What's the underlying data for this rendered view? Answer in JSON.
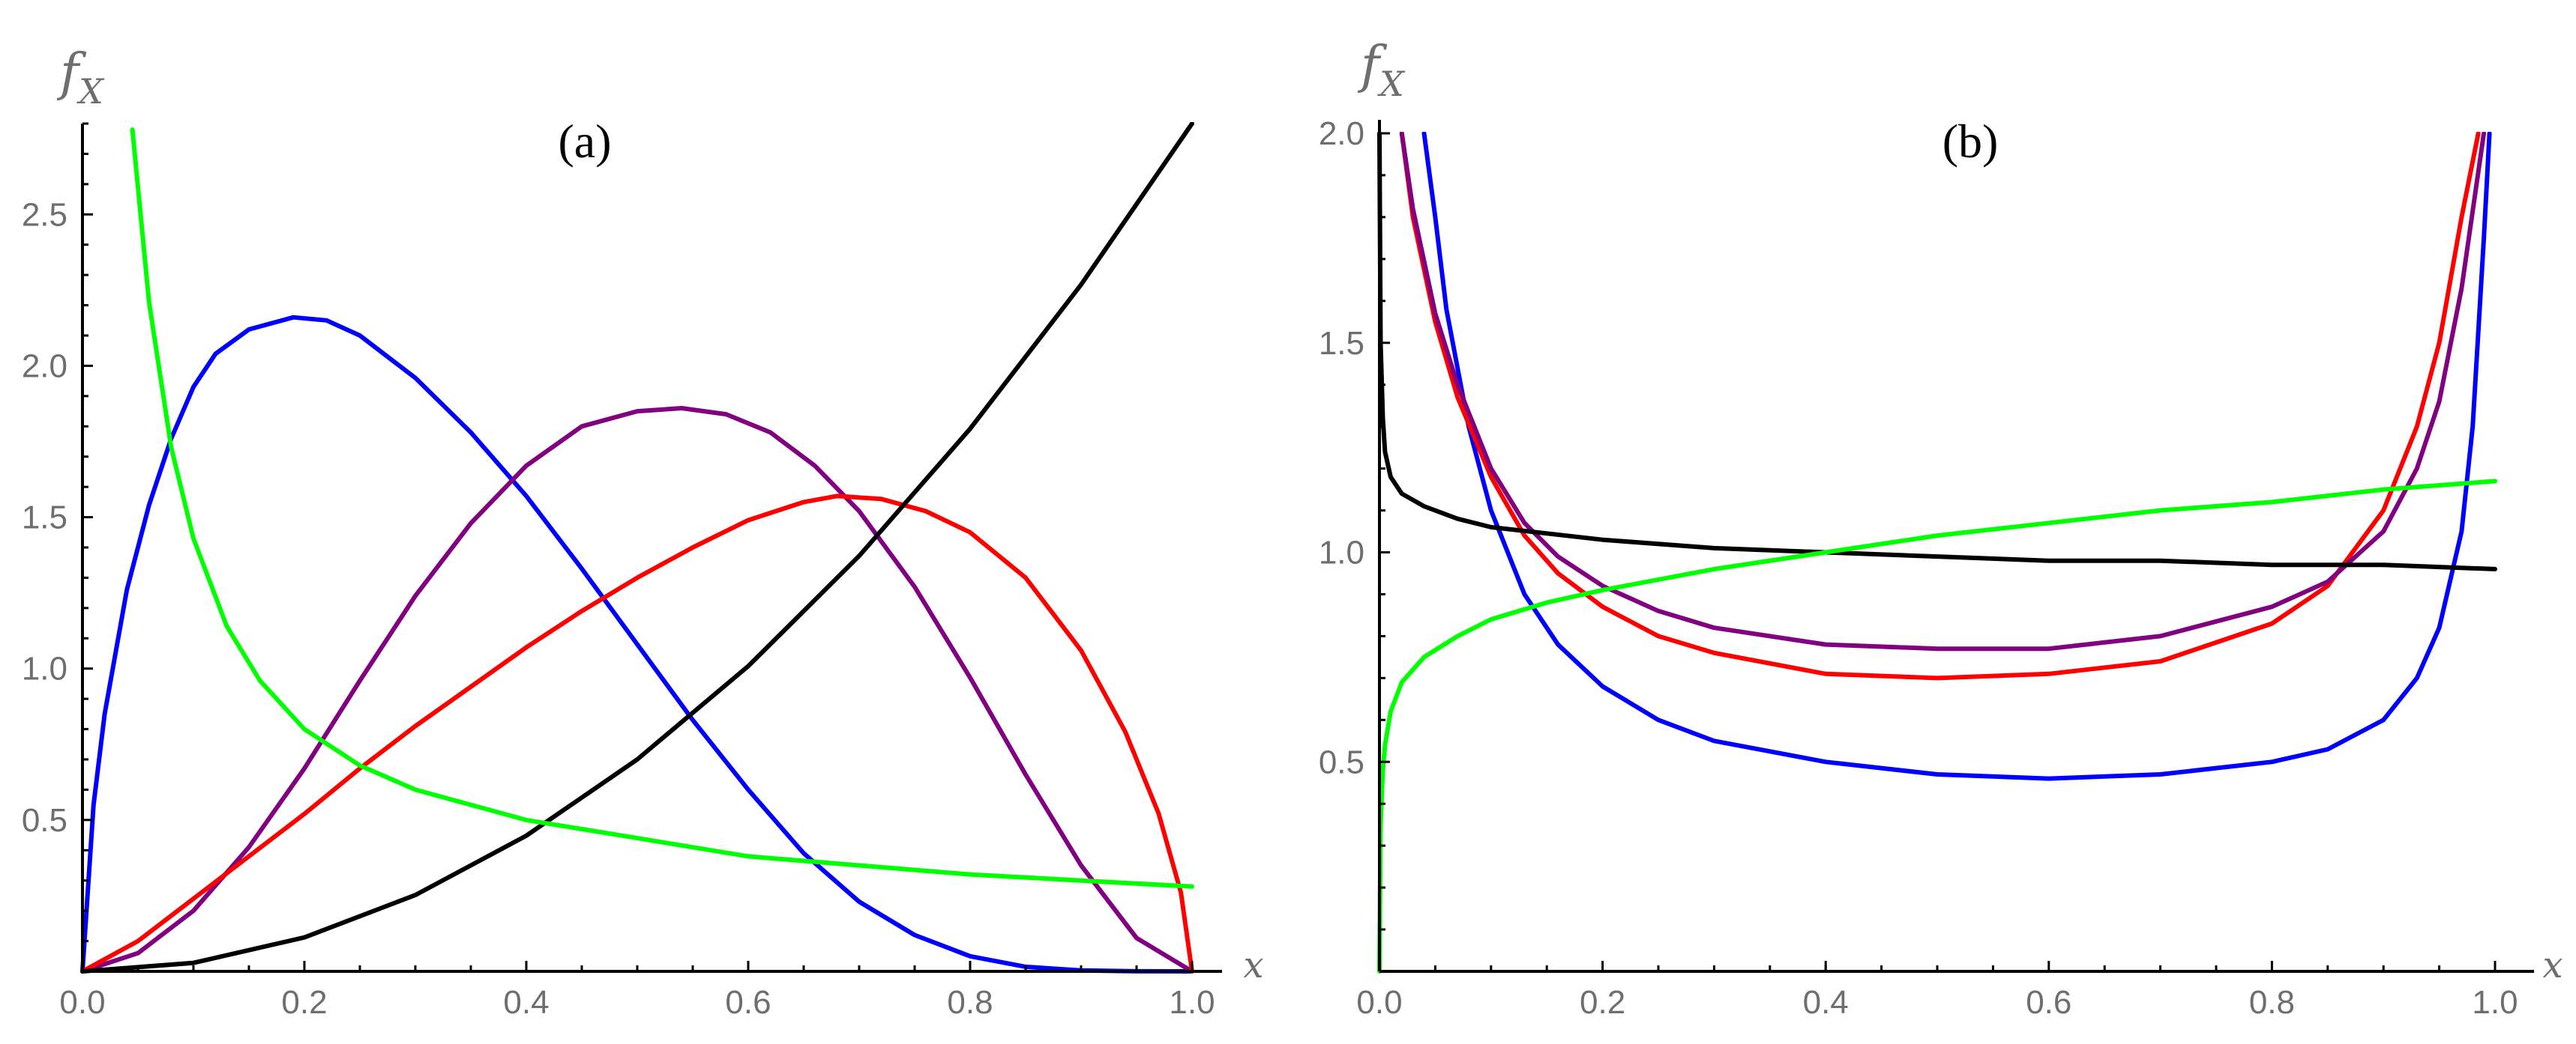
{
  "chart_data": [
    {
      "type": "line",
      "panel_label": "(a)",
      "ylabel": "f",
      "ylabel_sub": "X",
      "xlabel": "x",
      "xlim": [
        0,
        1
      ],
      "ylim": [
        0,
        2.8
      ],
      "xticks": [
        "0.0",
        "0.2",
        "0.4",
        "0.6",
        "0.8",
        "1.0"
      ],
      "yticks": [
        "0.5",
        "1.0",
        "1.5",
        "2.0",
        "2.5"
      ],
      "series": [
        {
          "color": "#0000ff",
          "x": [
            0,
            0.01,
            0.02,
            0.04,
            0.06,
            0.08,
            0.1,
            0.12,
            0.15,
            0.19,
            0.22,
            0.25,
            0.3,
            0.35,
            0.4,
            0.45,
            0.5,
            0.55,
            0.6,
            0.65,
            0.7,
            0.75,
            0.8,
            0.85,
            0.9,
            0.95,
            1.0
          ],
          "y": [
            0,
            0.55,
            0.85,
            1.26,
            1.54,
            1.76,
            1.93,
            2.04,
            2.12,
            2.16,
            2.15,
            2.1,
            1.96,
            1.78,
            1.57,
            1.33,
            1.08,
            0.83,
            0.6,
            0.39,
            0.23,
            0.12,
            0.05,
            0.015,
            0.003,
            0.0003,
            0
          ]
        },
        {
          "color": "#800080",
          "x": [
            0,
            0.05,
            0.1,
            0.15,
            0.2,
            0.25,
            0.3,
            0.35,
            0.4,
            0.45,
            0.5,
            0.54,
            0.58,
            0.62,
            0.66,
            0.7,
            0.75,
            0.8,
            0.85,
            0.9,
            0.95,
            1.0
          ],
          "y": [
            0,
            0.06,
            0.2,
            0.41,
            0.67,
            0.96,
            1.24,
            1.48,
            1.67,
            1.8,
            1.85,
            1.86,
            1.84,
            1.78,
            1.67,
            1.52,
            1.27,
            0.97,
            0.65,
            0.35,
            0.11,
            0
          ]
        },
        {
          "color": "#ff0000",
          "x": [
            0,
            0.05,
            0.1,
            0.15,
            0.2,
            0.25,
            0.3,
            0.35,
            0.4,
            0.45,
            0.5,
            0.55,
            0.6,
            0.65,
            0.68,
            0.72,
            0.76,
            0.8,
            0.85,
            0.9,
            0.94,
            0.97,
            0.99,
            1.0
          ],
          "y": [
            0,
            0.1,
            0.24,
            0.38,
            0.52,
            0.67,
            0.81,
            0.94,
            1.07,
            1.19,
            1.3,
            1.4,
            1.49,
            1.55,
            1.57,
            1.56,
            1.52,
            1.45,
            1.3,
            1.06,
            0.79,
            0.52,
            0.26,
            0
          ]
        },
        {
          "color": "#000000",
          "x": [
            0,
            0.1,
            0.2,
            0.3,
            0.4,
            0.5,
            0.6,
            0.7,
            0.8,
            0.9,
            1.0
          ],
          "y": [
            0,
            0.028,
            0.112,
            0.252,
            0.448,
            0.7,
            1.008,
            1.372,
            1.792,
            2.268,
            2.8
          ]
        },
        {
          "color": "#00ff00",
          "x": [
            0.045,
            0.06,
            0.08,
            0.1,
            0.13,
            0.16,
            0.2,
            0.25,
            0.3,
            0.4,
            0.5,
            0.6,
            0.7,
            0.8,
            0.9,
            1.0
          ],
          "y": [
            2.78,
            2.21,
            1.73,
            1.43,
            1.14,
            0.96,
            0.8,
            0.68,
            0.6,
            0.5,
            0.44,
            0.38,
            0.35,
            0.32,
            0.3,
            0.28
          ]
        }
      ]
    },
    {
      "type": "line",
      "panel_label": "(b)",
      "ylabel": "f",
      "ylabel_sub": "X",
      "xlabel": "x",
      "xlim": [
        0,
        1
      ],
      "ylim": [
        0,
        2.0
      ],
      "xticks": [
        "0.0",
        "0.2",
        "0.4",
        "0.6",
        "0.8",
        "1.0"
      ],
      "yticks": [
        "0.5",
        "1.0",
        "1.5",
        "2.0"
      ],
      "series": [
        {
          "color": "#0000ff",
          "x": [
            0.04,
            0.05,
            0.06,
            0.08,
            0.1,
            0.13,
            0.16,
            0.2,
            0.25,
            0.3,
            0.4,
            0.5,
            0.6,
            0.7,
            0.8,
            0.85,
            0.9,
            0.93,
            0.95,
            0.97,
            0.98,
            0.99,
            0.995
          ],
          "y": [
            2.0,
            1.8,
            1.58,
            1.3,
            1.1,
            0.9,
            0.78,
            0.68,
            0.6,
            0.55,
            0.5,
            0.47,
            0.46,
            0.47,
            0.5,
            0.53,
            0.6,
            0.7,
            0.82,
            1.05,
            1.3,
            1.75,
            2.0
          ]
        },
        {
          "color": "#ff0000",
          "x": [
            0.02,
            0.03,
            0.05,
            0.07,
            0.1,
            0.13,
            0.16,
            0.2,
            0.25,
            0.3,
            0.4,
            0.5,
            0.6,
            0.7,
            0.8,
            0.85,
            0.9,
            0.93,
            0.95,
            0.97,
            0.985
          ],
          "y": [
            2.0,
            1.8,
            1.55,
            1.37,
            1.18,
            1.04,
            0.95,
            0.87,
            0.8,
            0.76,
            0.71,
            0.7,
            0.71,
            0.74,
            0.83,
            0.92,
            1.1,
            1.3,
            1.5,
            1.8,
            2.0
          ]
        },
        {
          "color": "#800080",
          "x": [
            0.02,
            0.03,
            0.05,
            0.07,
            0.1,
            0.13,
            0.16,
            0.2,
            0.25,
            0.3,
            0.4,
            0.5,
            0.6,
            0.7,
            0.8,
            0.85,
            0.9,
            0.93,
            0.95,
            0.97,
            0.99
          ],
          "y": [
            2.0,
            1.82,
            1.57,
            1.4,
            1.2,
            1.07,
            0.99,
            0.92,
            0.86,
            0.82,
            0.78,
            0.77,
            0.77,
            0.8,
            0.87,
            0.93,
            1.05,
            1.2,
            1.36,
            1.63,
            2.0
          ]
        },
        {
          "color": "#000000",
          "x": [
            0.0,
            0.001,
            0.003,
            0.005,
            0.01,
            0.02,
            0.04,
            0.07,
            0.1,
            0.2,
            0.3,
            0.4,
            0.5,
            0.6,
            0.7,
            0.8,
            0.9,
            1.0
          ],
          "y": [
            2.0,
            1.5,
            1.32,
            1.24,
            1.18,
            1.14,
            1.11,
            1.08,
            1.06,
            1.03,
            1.01,
            1.0,
            0.99,
            0.98,
            0.98,
            0.97,
            0.97,
            0.96
          ]
        },
        {
          "color": "#00ff00",
          "x": [
            0.0,
            0.001,
            0.003,
            0.005,
            0.01,
            0.02,
            0.04,
            0.07,
            0.1,
            0.15,
            0.2,
            0.3,
            0.4,
            0.5,
            0.6,
            0.7,
            0.8,
            0.9,
            1.0
          ],
          "y": [
            0.0,
            0.35,
            0.48,
            0.54,
            0.62,
            0.69,
            0.75,
            0.8,
            0.84,
            0.88,
            0.91,
            0.96,
            1.0,
            1.04,
            1.07,
            1.1,
            1.12,
            1.15,
            1.17
          ]
        }
      ]
    }
  ]
}
